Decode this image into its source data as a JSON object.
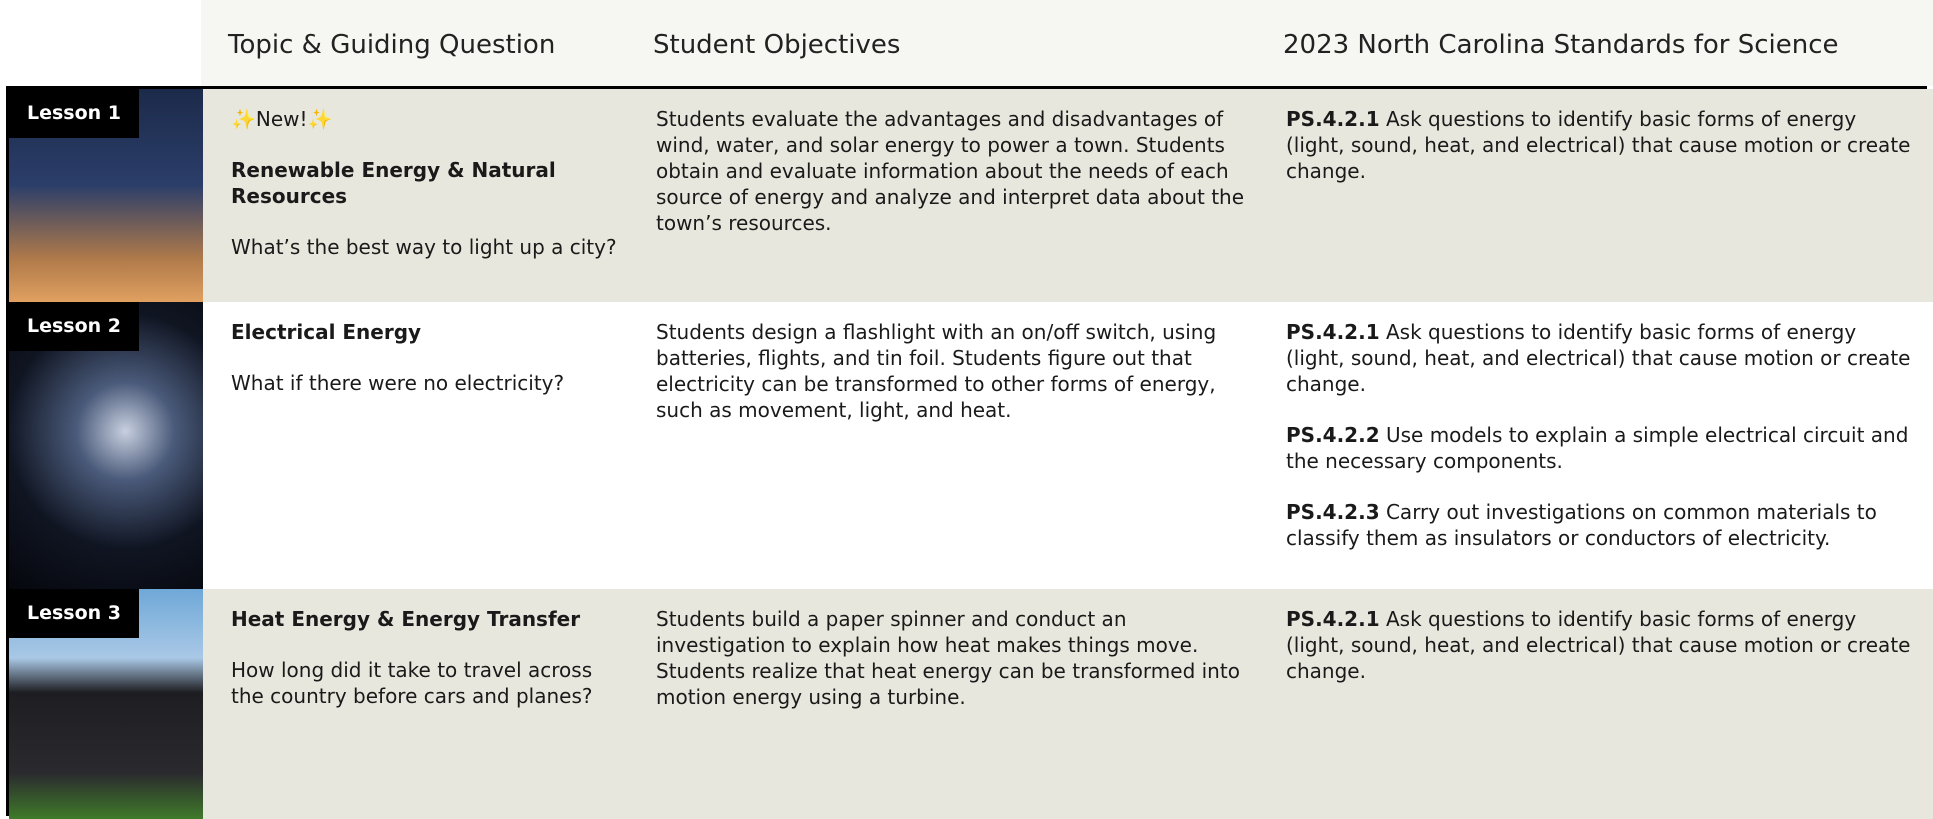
{
  "header": {
    "columns": [
      "Topic & Guiding Question",
      "Student Objectives",
      "2023 North Carolina Standards for Science"
    ]
  },
  "rows": [
    {
      "lesson": "Lesson 1",
      "badge": "✨New!✨",
      "topic": "Renewable Energy & Natural Resources",
      "question": "What’s the best way to light up a city?",
      "objectives": "Students evaluate the advantages and disadvantages of wind, water, and solar energy to power a town. Students obtain and evaluate information about the needs of each source of energy and analyze and interpret data about the town’s resources.",
      "standards": [
        {
          "code": "PS.4.2.1",
          "text": "Ask questions to identify basic forms of energy (light, sound, heat, and electrical) that cause motion or create change."
        }
      ]
    },
    {
      "lesson": "Lesson 2",
      "topic": "Electrical Energy",
      "question": "What if there were no electricity?",
      "objectives": "Students design a flashlight with an on/off switch, using batteries, flights, and tin foil. Students figure out that electricity can be transformed to other forms of energy, such as movement, light, and heat.",
      "standards": [
        {
          "code": "PS.4.2.1",
          "text": "Ask questions to identify basic forms of energy (light, sound, heat, and electrical) that cause motion or create change."
        },
        {
          "code": "PS.4.2.2",
          "text": "Use models to explain a simple electrical circuit and the necessary components."
        },
        {
          "code": "PS.4.2.3",
          "text": "Carry out investigations on common materials to classify them as insulators or conductors of electricity."
        }
      ]
    },
    {
      "lesson": "Lesson 3",
      "topic": "Heat Energy & Energy Transfer",
      "question": "How long did it take to travel across the country before cars and planes?",
      "objectives": "Students build a paper spinner and conduct an investigation to explain how heat makes things move. Students realize that heat energy can be transformed into motion energy using a turbine.",
      "standards": [
        {
          "code": "PS.4.2.1",
          "text": "Ask questions to identify basic forms of energy (light, sound, heat, and electrical) that cause motion or create change."
        }
      ]
    }
  ]
}
